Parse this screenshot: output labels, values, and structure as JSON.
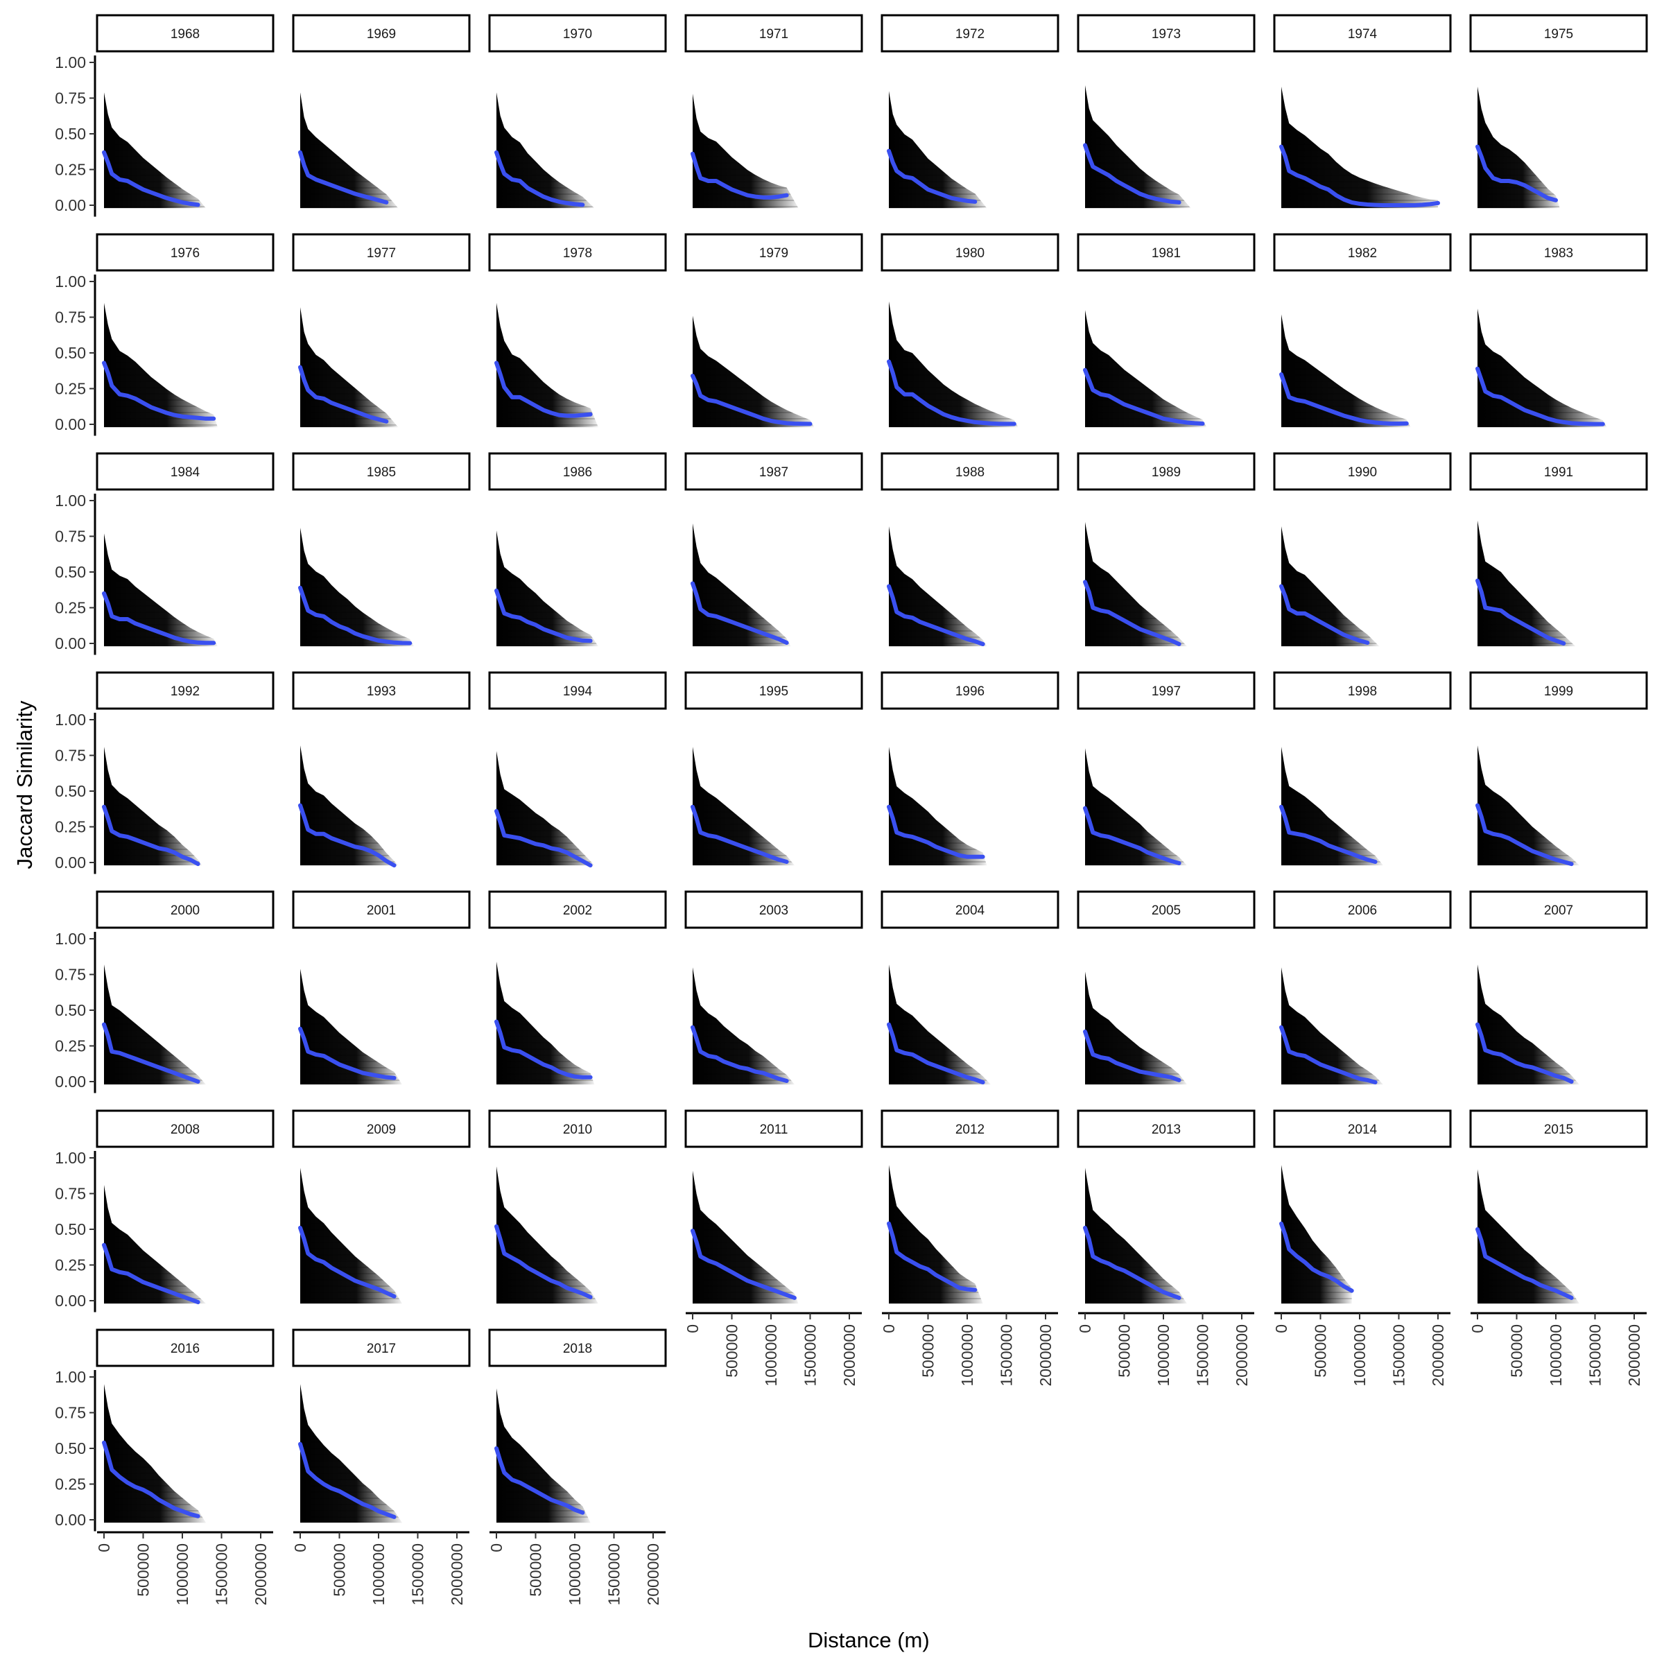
{
  "chart_data": {
    "type": "scatter",
    "facet_variable": "year",
    "xlabel": "Distance (m)",
    "ylabel": "Jaccard Similarity",
    "xlim": [
      -100000,
      2150000
    ],
    "ylim": [
      -0.08,
      1.12
    ],
    "x_ticks": [
      0,
      500000,
      1000000,
      1500000,
      2000000
    ],
    "x_tick_labels": [
      "0",
      "500000",
      "1000000",
      "1500000",
      "2000000"
    ],
    "y_ticks": [
      0,
      0.25,
      0.5,
      0.75,
      1.0
    ],
    "y_tick_labels": [
      "0.00",
      "0.25",
      "0.50",
      "0.75",
      "1.00"
    ],
    "grid": false,
    "legend": "none",
    "colors": {
      "points": "#000000",
      "smooth": "#3a50f0",
      "strip_border": "#000000",
      "strip_fill": "#ffffff"
    },
    "layout": {
      "ncol": 8,
      "nrow": 7
    },
    "smooth_x": [
      0,
      50000,
      100000,
      200000,
      300000,
      400000,
      500000,
      600000,
      700000,
      800000,
      900000,
      1000000,
      1100000,
      1200000,
      1300000,
      1400000,
      1500000,
      1600000,
      1700000,
      1800000,
      1900000,
      2000000
    ],
    "panels": [
      {
        "year": "1968",
        "xmax": 1300000,
        "smooth_y": [
          0.37,
          0.3,
          0.22,
          0.18,
          0.17,
          0.14,
          0.11,
          0.09,
          0.07,
          0.05,
          0.035,
          0.02,
          0.01,
          0.003
        ]
      },
      {
        "year": "1969",
        "xmax": 1250000,
        "smooth_y": [
          0.37,
          0.28,
          0.21,
          0.18,
          0.16,
          0.14,
          0.12,
          0.1,
          0.08,
          0.065,
          0.05,
          0.035,
          0.02
        ]
      },
      {
        "year": "1970",
        "xmax": 1250000,
        "smooth_y": [
          0.37,
          0.29,
          0.22,
          0.18,
          0.17,
          0.12,
          0.09,
          0.06,
          0.04,
          0.025,
          0.015,
          0.008,
          0.003
        ]
      },
      {
        "year": "1971",
        "xmax": 1350000,
        "smooth_y": [
          0.36,
          0.27,
          0.19,
          0.17,
          0.17,
          0.14,
          0.11,
          0.09,
          0.07,
          0.06,
          0.055,
          0.055,
          0.06,
          0.07
        ]
      },
      {
        "year": "1972",
        "xmax": 1250000,
        "smooth_y": [
          0.38,
          0.3,
          0.24,
          0.2,
          0.19,
          0.15,
          0.11,
          0.09,
          0.07,
          0.05,
          0.04,
          0.03,
          0.025
        ]
      },
      {
        "year": "1973",
        "xmax": 1350000,
        "smooth_y": [
          0.42,
          0.34,
          0.27,
          0.24,
          0.21,
          0.17,
          0.14,
          0.11,
          0.08,
          0.06,
          0.045,
          0.035,
          0.025,
          0.02
        ]
      },
      {
        "year": "1974",
        "xmax": 2000000,
        "smooth_y": [
          0.41,
          0.34,
          0.24,
          0.21,
          0.19,
          0.16,
          0.13,
          0.11,
          0.07,
          0.04,
          0.02,
          0.01,
          0.005,
          0.002,
          0.0,
          0.0,
          0.0,
          0.0,
          0.0,
          0.003,
          0.008,
          0.015
        ]
      },
      {
        "year": "1975",
        "xmax": 1050000,
        "smooth_y": [
          0.41,
          0.34,
          0.26,
          0.19,
          0.17,
          0.17,
          0.16,
          0.14,
          0.11,
          0.08,
          0.05,
          0.035
        ]
      },
      {
        "year": "1976",
        "xmax": 1450000,
        "smooth_y": [
          0.43,
          0.36,
          0.27,
          0.21,
          0.2,
          0.18,
          0.15,
          0.12,
          0.1,
          0.08,
          0.065,
          0.055,
          0.05,
          0.045,
          0.04,
          0.04
        ]
      },
      {
        "year": "1977",
        "xmax": 1250000,
        "smooth_y": [
          0.4,
          0.31,
          0.24,
          0.19,
          0.18,
          0.15,
          0.13,
          0.11,
          0.09,
          0.07,
          0.05,
          0.035,
          0.02
        ]
      },
      {
        "year": "1978",
        "xmax": 1300000,
        "smooth_y": [
          0.43,
          0.35,
          0.26,
          0.19,
          0.19,
          0.16,
          0.13,
          0.1,
          0.08,
          0.065,
          0.06,
          0.06,
          0.065,
          0.07
        ]
      },
      {
        "year": "1979",
        "xmax": 1550000,
        "smooth_y": [
          0.34,
          0.28,
          0.2,
          0.17,
          0.16,
          0.14,
          0.12,
          0.1,
          0.08,
          0.06,
          0.04,
          0.025,
          0.015,
          0.008,
          0.005,
          0.004,
          0.003
        ]
      },
      {
        "year": "1980",
        "xmax": 1650000,
        "smooth_y": [
          0.44,
          0.36,
          0.26,
          0.21,
          0.21,
          0.17,
          0.13,
          0.1,
          0.07,
          0.05,
          0.035,
          0.025,
          0.015,
          0.01,
          0.006,
          0.004,
          0.003,
          0.003
        ]
      },
      {
        "year": "1981",
        "xmax": 1550000,
        "smooth_y": [
          0.38,
          0.31,
          0.24,
          0.21,
          0.2,
          0.17,
          0.14,
          0.12,
          0.1,
          0.08,
          0.06,
          0.04,
          0.03,
          0.02,
          0.012,
          0.008,
          0.005
        ]
      },
      {
        "year": "1982",
        "xmax": 1650000,
        "smooth_y": [
          0.35,
          0.27,
          0.19,
          0.17,
          0.16,
          0.14,
          0.12,
          0.1,
          0.08,
          0.06,
          0.045,
          0.03,
          0.02,
          0.012,
          0.008,
          0.005,
          0.005,
          0.006
        ]
      },
      {
        "year": "1983",
        "xmax": 1650000,
        "smooth_y": [
          0.39,
          0.31,
          0.23,
          0.2,
          0.19,
          0.16,
          0.13,
          0.1,
          0.08,
          0.06,
          0.04,
          0.025,
          0.015,
          0.008,
          0.005,
          0.003,
          0.002,
          0.002
        ]
      },
      {
        "year": "1984",
        "xmax": 1450000,
        "smooth_y": [
          0.35,
          0.28,
          0.19,
          0.17,
          0.17,
          0.14,
          0.12,
          0.1,
          0.08,
          0.06,
          0.04,
          0.025,
          0.012,
          0.006,
          0.004,
          0.004
        ]
      },
      {
        "year": "1985",
        "xmax": 1450000,
        "smooth_y": [
          0.39,
          0.31,
          0.23,
          0.2,
          0.19,
          0.15,
          0.12,
          0.1,
          0.07,
          0.05,
          0.035,
          0.02,
          0.012,
          0.006,
          0.003,
          0.002
        ]
      },
      {
        "year": "1986",
        "xmax": 1300000,
        "smooth_y": [
          0.37,
          0.29,
          0.21,
          0.19,
          0.18,
          0.15,
          0.13,
          0.1,
          0.08,
          0.06,
          0.04,
          0.03,
          0.02,
          0.018
        ]
      },
      {
        "year": "1987",
        "xmax": 1250000,
        "smooth_y": [
          0.42,
          0.34,
          0.24,
          0.2,
          0.19,
          0.17,
          0.15,
          0.13,
          0.11,
          0.09,
          0.07,
          0.05,
          0.03,
          0.005
        ]
      },
      {
        "year": "1988",
        "xmax": 1250000,
        "smooth_y": [
          0.4,
          0.32,
          0.22,
          0.19,
          0.18,
          0.15,
          0.13,
          0.11,
          0.09,
          0.07,
          0.05,
          0.03,
          0.015,
          -0.005
        ]
      },
      {
        "year": "1989",
        "xmax": 1300000,
        "smooth_y": [
          0.43,
          0.36,
          0.25,
          0.23,
          0.22,
          0.19,
          0.16,
          0.13,
          0.1,
          0.08,
          0.06,
          0.04,
          0.02,
          -0.005
        ]
      },
      {
        "year": "1990",
        "xmax": 1250000,
        "smooth_y": [
          0.4,
          0.33,
          0.24,
          0.21,
          0.21,
          0.18,
          0.15,
          0.12,
          0.09,
          0.06,
          0.04,
          0.02,
          0.005
        ]
      },
      {
        "year": "1991",
        "xmax": 1250000,
        "smooth_y": [
          0.44,
          0.36,
          0.25,
          0.24,
          0.23,
          0.19,
          0.16,
          0.13,
          0.1,
          0.07,
          0.04,
          0.02,
          0.0
        ]
      },
      {
        "year": "1992",
        "xmax": 1250000,
        "smooth_y": [
          0.39,
          0.31,
          0.22,
          0.19,
          0.18,
          0.16,
          0.14,
          0.12,
          0.1,
          0.09,
          0.07,
          0.04,
          0.02,
          -0.01
        ]
      },
      {
        "year": "1993",
        "xmax": 1250000,
        "smooth_y": [
          0.4,
          0.32,
          0.23,
          0.2,
          0.2,
          0.17,
          0.15,
          0.13,
          0.11,
          0.1,
          0.08,
          0.05,
          0.01,
          -0.02
        ]
      },
      {
        "year": "1994",
        "xmax": 1250000,
        "smooth_y": [
          0.36,
          0.28,
          0.19,
          0.18,
          0.17,
          0.15,
          0.13,
          0.12,
          0.1,
          0.09,
          0.07,
          0.04,
          0.01,
          -0.02
        ]
      },
      {
        "year": "1995",
        "xmax": 1300000,
        "smooth_y": [
          0.39,
          0.31,
          0.21,
          0.19,
          0.18,
          0.16,
          0.14,
          0.12,
          0.1,
          0.08,
          0.06,
          0.04,
          0.02,
          0.005
        ]
      },
      {
        "year": "1996",
        "xmax": 1250000,
        "smooth_y": [
          0.39,
          0.31,
          0.21,
          0.19,
          0.18,
          0.16,
          0.14,
          0.11,
          0.09,
          0.07,
          0.05,
          0.04,
          0.04,
          0.04
        ]
      },
      {
        "year": "1997",
        "xmax": 1300000,
        "smooth_y": [
          0.38,
          0.3,
          0.21,
          0.19,
          0.18,
          0.16,
          0.14,
          0.12,
          0.1,
          0.07,
          0.05,
          0.03,
          0.01,
          -0.005
        ]
      },
      {
        "year": "1998",
        "xmax": 1300000,
        "smooth_y": [
          0.39,
          0.31,
          0.21,
          0.2,
          0.19,
          0.17,
          0.15,
          0.12,
          0.1,
          0.08,
          0.06,
          0.04,
          0.02,
          0.005
        ]
      },
      {
        "year": "1999",
        "xmax": 1300000,
        "smooth_y": [
          0.4,
          0.32,
          0.22,
          0.2,
          0.19,
          0.17,
          0.14,
          0.11,
          0.08,
          0.06,
          0.04,
          0.02,
          0.005,
          -0.01
        ]
      },
      {
        "year": "2000",
        "xmax": 1300000,
        "smooth_y": [
          0.4,
          0.32,
          0.21,
          0.2,
          0.18,
          0.16,
          0.14,
          0.12,
          0.1,
          0.08,
          0.06,
          0.04,
          0.02,
          0.0
        ]
      },
      {
        "year": "2001",
        "xmax": 1300000,
        "smooth_y": [
          0.37,
          0.3,
          0.21,
          0.19,
          0.18,
          0.15,
          0.12,
          0.1,
          0.08,
          0.06,
          0.05,
          0.04,
          0.03,
          0.025
        ]
      },
      {
        "year": "2002",
        "xmax": 1250000,
        "smooth_y": [
          0.42,
          0.34,
          0.24,
          0.22,
          0.21,
          0.18,
          0.15,
          0.12,
          0.1,
          0.07,
          0.05,
          0.035,
          0.03,
          0.03
        ]
      },
      {
        "year": "2003",
        "xmax": 1300000,
        "smooth_y": [
          0.38,
          0.3,
          0.21,
          0.18,
          0.17,
          0.14,
          0.12,
          0.1,
          0.09,
          0.07,
          0.06,
          0.04,
          0.02,
          0.005
        ]
      },
      {
        "year": "2004",
        "xmax": 1300000,
        "smooth_y": [
          0.4,
          0.32,
          0.22,
          0.2,
          0.19,
          0.16,
          0.13,
          0.11,
          0.09,
          0.07,
          0.05,
          0.03,
          0.015,
          -0.005
        ]
      },
      {
        "year": "2005",
        "xmax": 1300000,
        "smooth_y": [
          0.35,
          0.27,
          0.19,
          0.17,
          0.16,
          0.13,
          0.11,
          0.09,
          0.07,
          0.06,
          0.05,
          0.04,
          0.03,
          0.01
        ]
      },
      {
        "year": "2006",
        "xmax": 1300000,
        "smooth_y": [
          0.38,
          0.3,
          0.21,
          0.19,
          0.18,
          0.15,
          0.12,
          0.1,
          0.08,
          0.06,
          0.04,
          0.02,
          0.01,
          -0.005
        ]
      },
      {
        "year": "2007",
        "xmax": 1300000,
        "smooth_y": [
          0.4,
          0.32,
          0.22,
          0.2,
          0.19,
          0.16,
          0.13,
          0.11,
          0.1,
          0.08,
          0.06,
          0.04,
          0.025,
          0.0
        ]
      },
      {
        "year": "2008",
        "xmax": 1300000,
        "smooth_y": [
          0.39,
          0.31,
          0.22,
          0.2,
          0.19,
          0.16,
          0.13,
          0.11,
          0.09,
          0.07,
          0.05,
          0.03,
          0.01,
          -0.01
        ]
      },
      {
        "year": "2009",
        "xmax": 1300000,
        "smooth_y": [
          0.51,
          0.43,
          0.33,
          0.29,
          0.27,
          0.23,
          0.2,
          0.17,
          0.14,
          0.12,
          0.1,
          0.08,
          0.055,
          0.03
        ]
      },
      {
        "year": "2010",
        "xmax": 1300000,
        "smooth_y": [
          0.52,
          0.43,
          0.33,
          0.3,
          0.27,
          0.23,
          0.2,
          0.17,
          0.14,
          0.12,
          0.09,
          0.07,
          0.05,
          0.025
        ]
      },
      {
        "year": "2011",
        "xmax": 1350000,
        "smooth_y": [
          0.49,
          0.41,
          0.31,
          0.28,
          0.26,
          0.23,
          0.2,
          0.17,
          0.14,
          0.12,
          0.1,
          0.08,
          0.06,
          0.04,
          0.02
        ]
      },
      {
        "year": "2012",
        "xmax": 1200000,
        "smooth_y": [
          0.54,
          0.45,
          0.34,
          0.3,
          0.27,
          0.24,
          0.22,
          0.18,
          0.15,
          0.12,
          0.09,
          0.08,
          0.075
        ]
      },
      {
        "year": "2013",
        "xmax": 1300000,
        "smooth_y": [
          0.51,
          0.43,
          0.31,
          0.28,
          0.26,
          0.23,
          0.21,
          0.18,
          0.15,
          0.12,
          0.09,
          0.06,
          0.04,
          0.02
        ]
      },
      {
        "year": "2014",
        "xmax": 900000,
        "smooth_y": [
          0.54,
          0.46,
          0.36,
          0.31,
          0.27,
          0.22,
          0.19,
          0.17,
          0.14,
          0.1,
          0.07
        ]
      },
      {
        "year": "2015",
        "xmax": 1300000,
        "smooth_y": [
          0.5,
          0.42,
          0.31,
          0.28,
          0.25,
          0.22,
          0.19,
          0.16,
          0.14,
          0.11,
          0.09,
          0.07,
          0.045,
          0.02
        ]
      },
      {
        "year": "2016",
        "xmax": 1300000,
        "smooth_y": [
          0.54,
          0.45,
          0.35,
          0.3,
          0.26,
          0.23,
          0.21,
          0.18,
          0.14,
          0.11,
          0.08,
          0.06,
          0.04,
          0.025
        ]
      },
      {
        "year": "2017",
        "xmax": 1300000,
        "smooth_y": [
          0.53,
          0.44,
          0.34,
          0.29,
          0.25,
          0.22,
          0.2,
          0.17,
          0.14,
          0.11,
          0.09,
          0.06,
          0.04,
          0.02
        ]
      },
      {
        "year": "2018",
        "xmax": 1200000,
        "smooth_y": [
          0.5,
          0.41,
          0.33,
          0.28,
          0.26,
          0.23,
          0.2,
          0.17,
          0.14,
          0.12,
          0.1,
          0.07,
          0.05
        ]
      }
    ]
  }
}
